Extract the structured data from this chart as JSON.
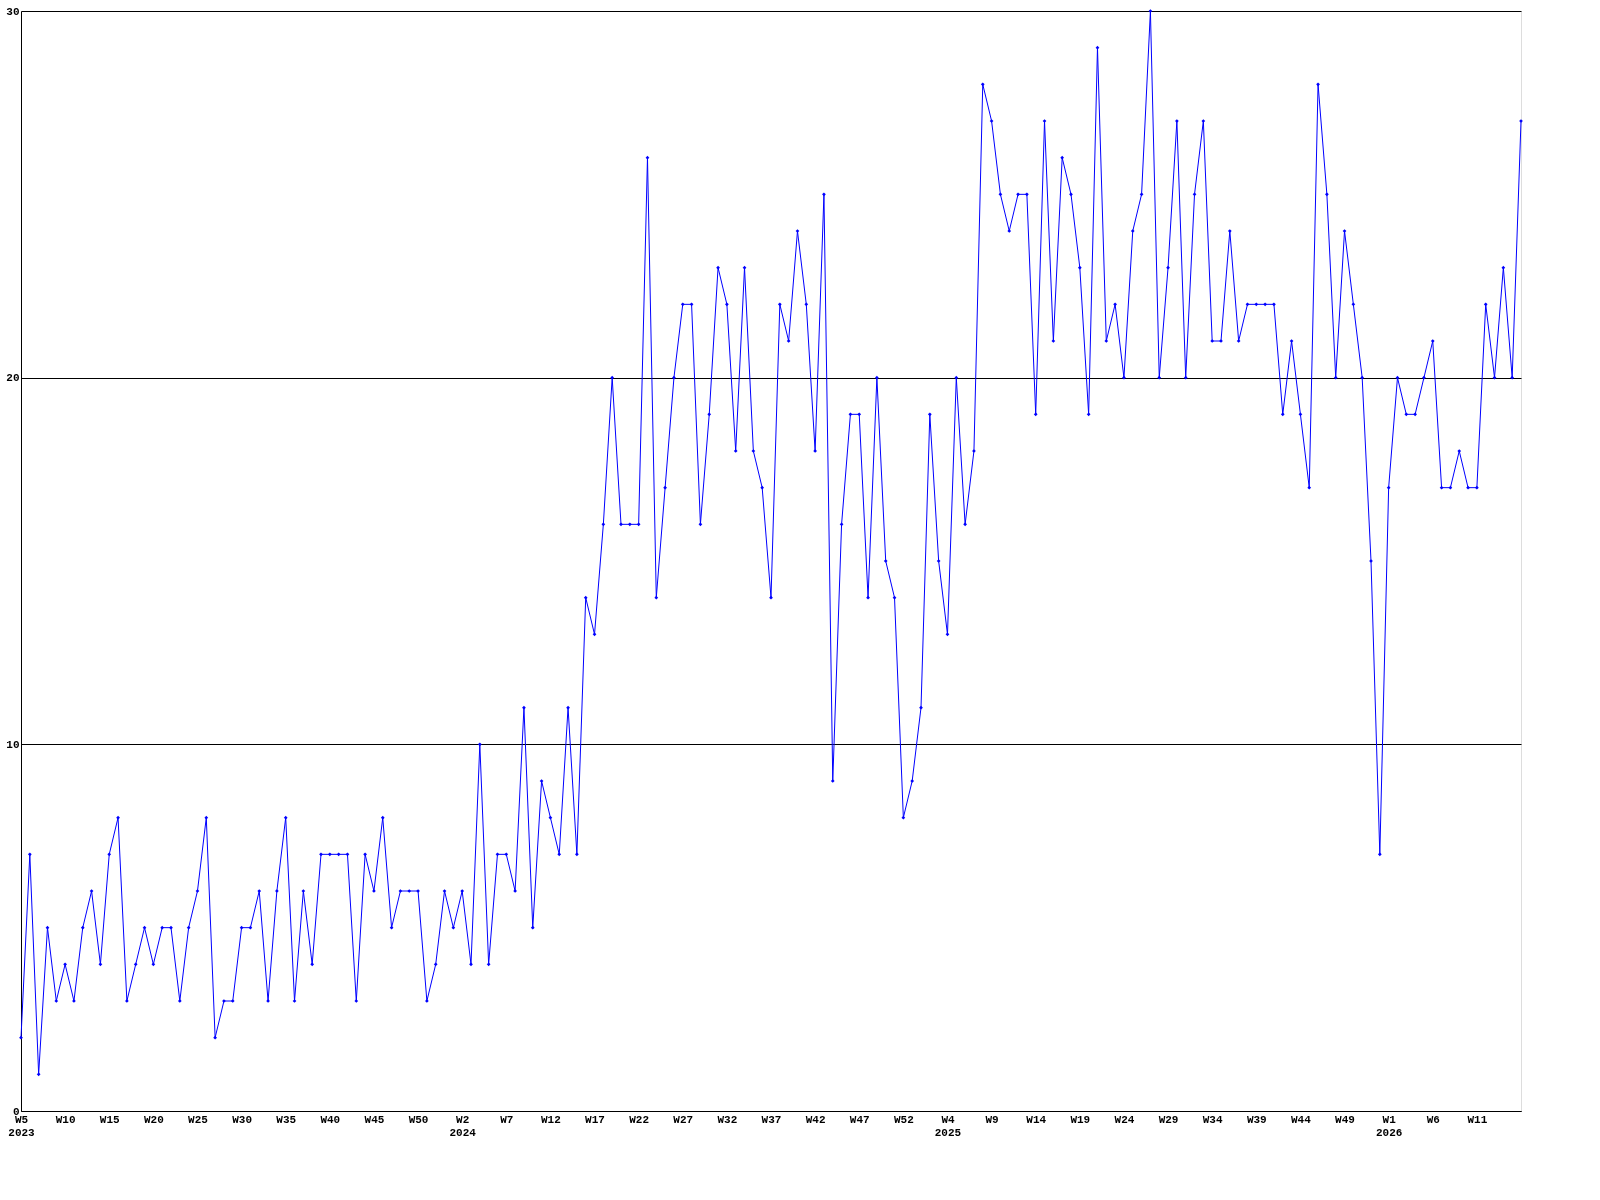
{
  "chart_data": {
    "type": "line",
    "categories": [
      "W5\n2023",
      null,
      null,
      null,
      null,
      "W10",
      null,
      null,
      null,
      null,
      "W15",
      null,
      null,
      null,
      null,
      "W20",
      null,
      null,
      null,
      null,
      "W25",
      null,
      null,
      null,
      null,
      "W30",
      null,
      null,
      null,
      null,
      "W35",
      null,
      null,
      null,
      null,
      "W40",
      null,
      null,
      null,
      null,
      "W45",
      null,
      null,
      null,
      null,
      "W50",
      null,
      null,
      null,
      null,
      "W2\n2024",
      null,
      null,
      null,
      null,
      "W7",
      null,
      null,
      null,
      null,
      "W12",
      null,
      null,
      null,
      null,
      "W17",
      null,
      null,
      null,
      null,
      "W22",
      null,
      null,
      null,
      null,
      "W27",
      null,
      null,
      null,
      null,
      "W32",
      null,
      null,
      null,
      null,
      "W37",
      null,
      null,
      null,
      null,
      "W42",
      null,
      null,
      null,
      null,
      "W47",
      null,
      null,
      null,
      null,
      "W52",
      null,
      null,
      null,
      null,
      "W4\n2025",
      null,
      null,
      null,
      null,
      "W9",
      null,
      null,
      null,
      null,
      "W14",
      null,
      null,
      null,
      null,
      "W19",
      null,
      null,
      null,
      null,
      "W24",
      null,
      null,
      null,
      null,
      "W29",
      null,
      null,
      null,
      null,
      "W34",
      null,
      null,
      null,
      null,
      "W39",
      null,
      null,
      null,
      null,
      "W44",
      null,
      null,
      null,
      null,
      "W49",
      null,
      null,
      null,
      null,
      "W1\n2026",
      null,
      null,
      null,
      null,
      "W6",
      null,
      null,
      null,
      null,
      "W11",
      null,
      null,
      null,
      null,
      null
    ],
    "series": [
      {
        "color": "#0000ff",
        "values": [
          2,
          7,
          1,
          5,
          3,
          4,
          3,
          5,
          6,
          4,
          7,
          8,
          3,
          4,
          5,
          4,
          5,
          5,
          3,
          5,
          6,
          8,
          2,
          3,
          3,
          5,
          5,
          6,
          3,
          6,
          8,
          3,
          6,
          4,
          7,
          7,
          7,
          7,
          3,
          7,
          6,
          8,
          5,
          6,
          6,
          6,
          3,
          4,
          6,
          5,
          6,
          4,
          10,
          4,
          7,
          7,
          6,
          11,
          5,
          9,
          8,
          7,
          11,
          7,
          14,
          13,
          16,
          20,
          16,
          16,
          16,
          26,
          14,
          17,
          20,
          22,
          22,
          16,
          19,
          23,
          22,
          18,
          23,
          18,
          17,
          14,
          22,
          21,
          24,
          22,
          18,
          25,
          9,
          16,
          19,
          19,
          14,
          20,
          15,
          14,
          8,
          9,
          11,
          19,
          15,
          13,
          20,
          16,
          18,
          28,
          27,
          25,
          24,
          25,
          25,
          19,
          27,
          21,
          26,
          25,
          23,
          19,
          29,
          21,
          22,
          20,
          24,
          25,
          30,
          20,
          23,
          27,
          20,
          25,
          27,
          21,
          21,
          24,
          21,
          22,
          22,
          22,
          22,
          19,
          21,
          19,
          17,
          28,
          25,
          20,
          24,
          22,
          20,
          15,
          7,
          17,
          20,
          19,
          19,
          20,
          21,
          17,
          17,
          18,
          17,
          17,
          22,
          20,
          23,
          20,
          27
        ]
      }
    ],
    "ylim": [
      0,
      30
    ],
    "yticks": [
      0,
      10,
      20,
      30
    ],
    "grid": "y",
    "marker": "diamond",
    "line_style": "solid",
    "legend": false
  }
}
